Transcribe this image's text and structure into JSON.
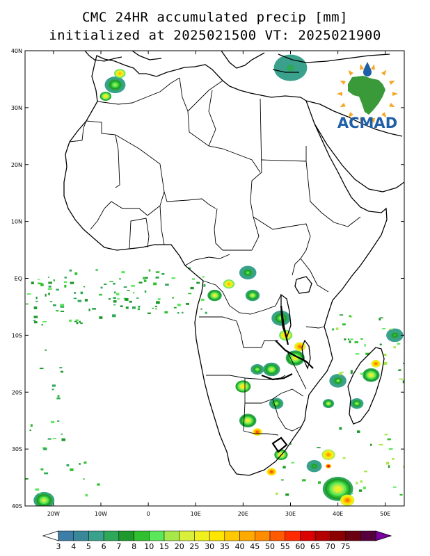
{
  "title_line1": "CMC 24HR accumulated precip [mm]",
  "title_line2": "initialized at 2025021500 VT: 2025021900",
  "logo": {
    "text": "ACMAD",
    "text_color": "#1f5fa8",
    "land_color": "#3a9a3a",
    "sun_color": "#f5a623"
  },
  "map": {
    "lon_range": [
      -26,
      54
    ],
    "lat_range": [
      -40,
      40
    ],
    "lat_ticks": [
      {
        "value": 40,
        "label": "40N"
      },
      {
        "value": 30,
        "label": "30N"
      },
      {
        "value": 20,
        "label": "20N"
      },
      {
        "value": 10,
        "label": "10N"
      },
      {
        "value": 0,
        "label": "EQ"
      },
      {
        "value": -10,
        "label": "10S"
      },
      {
        "value": -20,
        "label": "20S"
      },
      {
        "value": -30,
        "label": "30S"
      },
      {
        "value": -40,
        "label": "40S"
      }
    ],
    "lon_ticks": [
      {
        "value": -20,
        "label": "20W"
      },
      {
        "value": -10,
        "label": "10W"
      },
      {
        "value": 0,
        "label": "0"
      },
      {
        "value": 10,
        "label": "10E"
      },
      {
        "value": 20,
        "label": "20E"
      },
      {
        "value": 30,
        "label": "30E"
      },
      {
        "value": 40,
        "label": "40E"
      },
      {
        "value": 50,
        "label": "50E"
      }
    ],
    "precip_blobs": [
      {
        "lon": -7,
        "lat": 34,
        "r": 2.2,
        "level": 7
      },
      {
        "lon": -9,
        "lat": 32,
        "r": 1.2,
        "level": 10
      },
      {
        "lon": -6,
        "lat": 36,
        "r": 1.2,
        "level": 12
      },
      {
        "lon": 30,
        "lat": 37,
        "r": 3.5,
        "level": 3
      },
      {
        "lon": 14,
        "lat": -3,
        "r": 1.5,
        "level": 9
      },
      {
        "lon": 17,
        "lat": -1,
        "r": 1.2,
        "level": 12
      },
      {
        "lon": 21,
        "lat": 1,
        "r": 1.8,
        "level": 6
      },
      {
        "lon": 22,
        "lat": -3,
        "r": 1.5,
        "level": 8
      },
      {
        "lon": 28,
        "lat": -7,
        "r": 2.0,
        "level": 7
      },
      {
        "lon": 29,
        "lat": -10,
        "r": 1.4,
        "level": 12
      },
      {
        "lon": 31,
        "lat": -14,
        "r": 2.0,
        "level": 9
      },
      {
        "lon": 32,
        "lat": -12,
        "r": 1.2,
        "level": 14
      },
      {
        "lon": 26,
        "lat": -16,
        "r": 1.8,
        "level": 8
      },
      {
        "lon": 23,
        "lat": -16,
        "r": 1.4,
        "level": 7
      },
      {
        "lon": 20,
        "lat": -19,
        "r": 1.6,
        "level": 10
      },
      {
        "lon": 21,
        "lat": -25,
        "r": 1.8,
        "level": 9
      },
      {
        "lon": 23,
        "lat": -27,
        "r": 1.0,
        "level": 15
      },
      {
        "lon": 27,
        "lat": -22,
        "r": 1.5,
        "level": 7
      },
      {
        "lon": 28,
        "lat": -31,
        "r": 1.4,
        "level": 10
      },
      {
        "lon": 26,
        "lat": -34,
        "r": 1.0,
        "level": 15
      },
      {
        "lon": 38,
        "lat": -31,
        "r": 1.4,
        "level": 13
      },
      {
        "lon": 38,
        "lat": -33,
        "r": 0.6,
        "level": 17
      },
      {
        "lon": 47,
        "lat": -17,
        "r": 1.8,
        "level": 9
      },
      {
        "lon": 48,
        "lat": -15,
        "r": 1.0,
        "level": 14
      },
      {
        "lon": 44,
        "lat": -22,
        "r": 1.4,
        "level": 7
      },
      {
        "lon": 40,
        "lat": -18,
        "r": 1.8,
        "level": 6
      },
      {
        "lon": 38,
        "lat": -22,
        "r": 1.2,
        "level": 8
      },
      {
        "lon": 52,
        "lat": -10,
        "r": 1.8,
        "level": 5
      },
      {
        "lon": -22,
        "lat": -39,
        "r": 2.2,
        "level": 8
      },
      {
        "lon": 40,
        "lat": -37,
        "r": 3.2,
        "level": 9
      },
      {
        "lon": 42,
        "lat": -39,
        "r": 1.5,
        "level": 14
      },
      {
        "lon": 35,
        "lat": -33,
        "r": 1.6,
        "level": 5
      }
    ],
    "precip_scatter_regions": [
      {
        "lon": [
          -26,
          -5
        ],
        "lat": [
          -8,
          2
        ],
        "count": 70,
        "level": 3
      },
      {
        "lon": [
          -5,
          12
        ],
        "lat": [
          -6,
          2
        ],
        "count": 45,
        "level": 3
      },
      {
        "lon": [
          38,
          54
        ],
        "lat": [
          -18,
          -6
        ],
        "count": 35,
        "level": 4
      },
      {
        "lon": [
          26,
          54
        ],
        "lat": [
          -38,
          -26
        ],
        "count": 30,
        "level": 4
      },
      {
        "lon": [
          -26,
          -18
        ],
        "lat": [
          -30,
          -12
        ],
        "count": 18,
        "level": 3
      },
      {
        "lon": [
          -26,
          -10
        ],
        "lat": [
          -38,
          -32
        ],
        "count": 12,
        "level": 3
      }
    ]
  },
  "colorbar": {
    "labels": [
      "3",
      "4",
      "5",
      "6",
      "7",
      "8",
      "10",
      "15",
      "20",
      "25",
      "30",
      "35",
      "40",
      "45",
      "50",
      "55",
      "60",
      "65",
      "70",
      "75"
    ],
    "colors": [
      "#3d7ea8",
      "#38889a",
      "#3aa28c",
      "#2fa85a",
      "#1e9a2c",
      "#2fbf2f",
      "#5ae85a",
      "#a6e84a",
      "#d9f03a",
      "#f0f01e",
      "#ffe600",
      "#ffc800",
      "#ffaa00",
      "#ff8c00",
      "#ff5a00",
      "#ff2a00",
      "#dd0000",
      "#b40000",
      "#8c0000",
      "#6a0010",
      "#55003c"
    ],
    "low_cap": "#ffffff",
    "high_cap": "#7a00a0"
  }
}
